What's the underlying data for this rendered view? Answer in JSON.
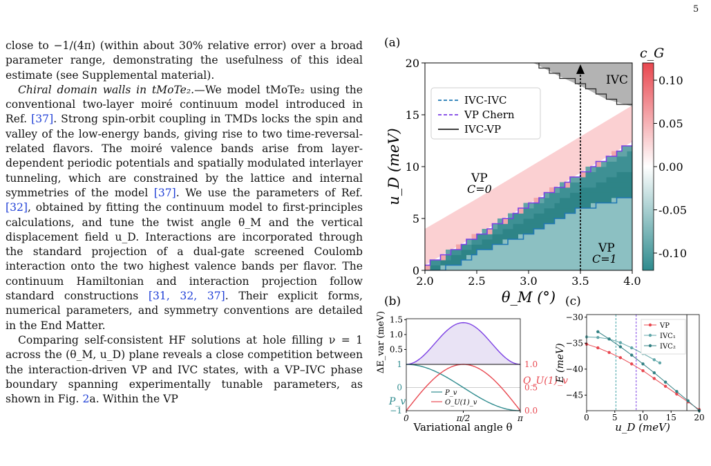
{
  "page_number": "5",
  "text": {
    "p1": "close to −1/(4π) (within about 30% relative error) over a broad parameter range, demonstrating the usefulness of this ideal estimate (see Supplemental material).",
    "p2_head": "Chiral domain walls in tMoTe₂.",
    "p2_a": "—We model tMoTe₂ using the conventional two-layer moiré continuum model introduced in Ref. ",
    "p2_c1": "[37]",
    "p2_b": ". Strong spin-orbit coupling in TMDs locks the spin and valley of the low-energy bands, giving rise to two time-reversal-related flavors. The moiré valence bands arise from layer-dependent periodic potentials and spatially modulated interlayer tunneling, which are constrained by the lattice and internal symmetries of the model ",
    "p2_c2": "[37]",
    "p2_c": ". We use the parameters of Ref. ",
    "p2_c3": "[32]",
    "p2_d": ", obtained by fitting the continuum model to first-principles calculations, and tune the twist angle θ_M and the vertical displacement field u_D. Interactions are incorporated through the standard projection of a dual-gate screened Coulomb interaction onto the two highest valence bands per flavor. The continuum Hamiltonian and interaction projection follow standard constructions ",
    "p2_c4": "[31, 32, 37]",
    "p2_e": ". Their explicit forms, numerical parameters, and symmetry conventions are detailed in the End Matter.",
    "p3_a": "Comparing self-consistent HF solutions at hole filling ν = 1 across the (θ_M, u_D) plane reveals a close competition between the interaction-driven VP and IVC states, with a VP–IVC phase boundary spanning experimentally tunable parameters, as shown in Fig. ",
    "p3_c1": "2",
    "p3_b": "a. Within the VP"
  },
  "colors": {
    "teal": "#2e8b8e",
    "red": "#e8474f",
    "purple": "#7b3fe4",
    "gray": "#b3b3b3",
    "link": "#1f3fd6"
  },
  "chart_data": [
    {
      "type": "heatmap",
      "panel_label": "(a)",
      "xlabel": "θ_M (°)",
      "ylabel": "u_D (meV)",
      "xlim": [
        2.0,
        4.0
      ],
      "ylim": [
        0,
        20
      ],
      "xticks": [
        "2.0",
        "2.5",
        "3.0",
        "3.5",
        "4.0"
      ],
      "yticks": [
        "0",
        "5",
        "10",
        "15",
        "20"
      ],
      "colorbar": {
        "label": "c_G",
        "range": [
          -0.12,
          0.12
        ],
        "ticks": [
          "0.10",
          "0.05",
          "0.00",
          "-0.05",
          "-0.10"
        ]
      },
      "legend": [
        "IVC-IVC",
        "VP Chern",
        "IVC-VP"
      ],
      "legend_placement": "upper-left",
      "region_labels": [
        "IVC",
        "VP",
        "C=0",
        "VP",
        "C=1"
      ],
      "vp_chern_boundary": {
        "theta": [
          2.0,
          2.5,
          3.0,
          3.5,
          4.0
        ],
        "u": [
          0.5,
          3.4,
          6.4,
          9.4,
          12.4
        ]
      },
      "ivc_ivc_boundary": {
        "theta": [
          2.0,
          2.3,
          2.5,
          3.0,
          3.5,
          4.0
        ],
        "u": [
          0.0,
          0.5,
          1.8,
          3.6,
          6.0,
          7.2
        ]
      },
      "ivc_vp_boundary": {
        "theta": [
          3.05,
          3.3,
          3.5,
          3.75,
          4.0
        ],
        "u": [
          20.0,
          18.7,
          17.8,
          16.5,
          15.8
        ]
      },
      "cut_theta": 3.5
    },
    {
      "type": "line",
      "panel_label": "(b)",
      "xlabel": "Variational angle θ",
      "xticks": [
        "0",
        "π/2",
        "π"
      ],
      "top": {
        "ylabel": "ΔE_var (meV)",
        "yticks": [
          "0.5",
          "1.0",
          "1.5"
        ],
        "ylim": [
          0,
          1.5
        ],
        "peak": 1.4
      },
      "bottom": {
        "left_label": "P_v",
        "left_ticks": [
          "1",
          "0",
          "−1"
        ],
        "right_label": "O_U(1)_v",
        "right_ticks": [
          "1.0",
          "0.5",
          "0.0"
        ],
        "series": [
          {
            "name": "P_v",
            "formula": "cos θ"
          },
          {
            "name": "O_U(1)_v",
            "formula": "sin θ"
          }
        ]
      }
    },
    {
      "type": "scatter",
      "panel_label": "(c)",
      "xlabel": "u_D (meV)",
      "ylabel": "E (meV)",
      "xlim": [
        0,
        20
      ],
      "ylim": [
        -48,
        -29.5
      ],
      "xticks": [
        "0",
        "5",
        "10",
        "15",
        "20"
      ],
      "yticks": [
        "−30",
        "−35",
        "−40",
        "−45"
      ],
      "vlines": [
        5.2,
        8.8,
        17.8
      ],
      "series": [
        {
          "name": "VP",
          "x": [
            0,
            2,
            4,
            6,
            8,
            10,
            12,
            14,
            16,
            18,
            20
          ],
          "y": [
            -35.2,
            -35.9,
            -36.8,
            -37.8,
            -39.0,
            -40.3,
            -41.8,
            -43.3,
            -44.8,
            -46.3,
            -47.8
          ]
        },
        {
          "name": "IVC₁",
          "x": [
            0,
            2,
            4,
            6,
            8,
            10,
            12,
            13
          ],
          "y": [
            -33.8,
            -33.9,
            -34.2,
            -34.9,
            -35.9,
            -37.0,
            -38.2,
            -38.8
          ]
        },
        {
          "name": "IVC₂",
          "x": [
            2,
            4,
            6,
            8,
            10,
            12,
            14,
            16,
            18,
            20
          ],
          "y": [
            -32.8,
            -34.2,
            -35.7,
            -37.3,
            -39.0,
            -40.7,
            -42.5,
            -44.3,
            -46.1,
            -48.0
          ]
        }
      ]
    }
  ]
}
